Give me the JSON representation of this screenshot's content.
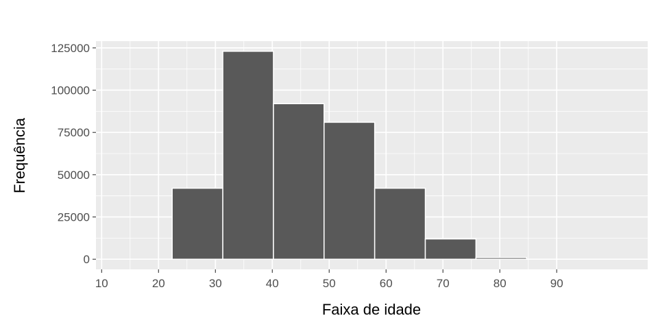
{
  "chart_data": {
    "type": "bar",
    "title": "",
    "xlabel": "Faixa de idade",
    "ylabel": "Frequência",
    "bins": [
      {
        "x0": 13.5,
        "x1": 22.4,
        "value": 0
      },
      {
        "x0": 22.4,
        "x1": 31.3,
        "value": 42000
      },
      {
        "x0": 31.3,
        "x1": 40.2,
        "value": 123000
      },
      {
        "x0": 40.2,
        "x1": 49.1,
        "value": 92000
      },
      {
        "x0": 49.1,
        "x1": 58.0,
        "value": 81000
      },
      {
        "x0": 58.0,
        "x1": 66.9,
        "value": 42000
      },
      {
        "x0": 66.9,
        "x1": 75.8,
        "value": 12000
      },
      {
        "x0": 75.8,
        "x1": 84.7,
        "value": 1000
      },
      {
        "x0": 84.7,
        "x1": 93.6,
        "value": 0
      }
    ],
    "xlim": [
      9,
      106
    ],
    "ylim": [
      -6000,
      129000
    ],
    "xticks": [
      10,
      20,
      30,
      40,
      50,
      60,
      70,
      80,
      90
    ],
    "xtick_labels": [
      "10",
      "20",
      "30",
      "40",
      "50",
      "60",
      "70",
      "80",
      "90"
    ],
    "yticks": [
      0,
      25000,
      50000,
      75000,
      100000,
      125000
    ],
    "ytick_labels": [
      "0",
      "25000",
      "50000",
      "75000",
      "100000",
      "125000"
    ],
    "grid": true,
    "legend": "none",
    "colors": {
      "bar_fill": "#595959",
      "bar_stroke": "#ffffff",
      "panel_background": "#ebebeb",
      "grid": "#ffffff",
      "tick_text": "#4d4d4d",
      "axis_title": "#000000"
    }
  }
}
